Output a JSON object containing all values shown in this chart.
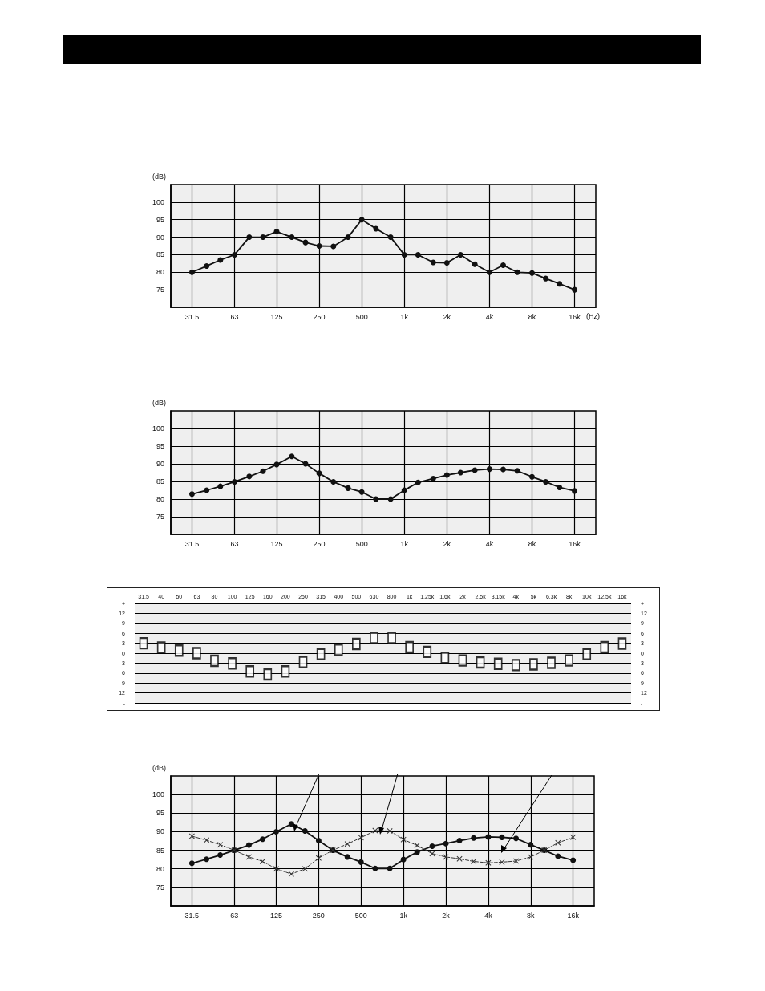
{
  "chart_data": [
    {
      "type": "line",
      "ylabel": "(dB)",
      "xlabel": "(Hz)",
      "log": "x",
      "grid": true,
      "marker": "circle",
      "line_style": "solid",
      "x": [
        31.5,
        40,
        50,
        63,
        80,
        100,
        125,
        160,
        200,
        250,
        315,
        400,
        500,
        630,
        800,
        1000,
        1250,
        1600,
        2000,
        2500,
        3150,
        4000,
        5000,
        6300,
        8000,
        10000,
        12500,
        16000
      ],
      "series": [
        {
          "color": "#111111",
          "values": [
            80,
            81.8,
            83.5,
            85,
            90,
            90,
            91.6,
            90,
            88.5,
            87.5,
            87.4,
            90,
            95,
            92.4,
            90,
            85,
            85,
            82.8,
            82.7,
            85,
            82.3,
            80,
            82,
            80,
            79.8,
            78.2,
            76.7,
            75
          ]
        }
      ],
      "xlim": [
        22.3,
        22600
      ],
      "xticks": [
        {
          "value": 31.5,
          "label": "31.5"
        },
        63,
        125,
        250,
        500,
        {
          "value": 1000,
          "label": "1k"
        },
        {
          "value": 2000,
          "label": "2k"
        },
        {
          "value": 4000,
          "label": "4k"
        },
        {
          "value": 8000,
          "label": "8k"
        },
        {
          "value": 16000,
          "label": "16k"
        }
      ],
      "ylim": [
        70,
        105
      ],
      "yticks": [
        75,
        80,
        85,
        90,
        95,
        100
      ]
    },
    {
      "type": "line",
      "ylabel": "(dB)",
      "log": "x",
      "grid": true,
      "marker": "circle",
      "line_style": "solid",
      "x": [
        31.5,
        40,
        50,
        63,
        80,
        100,
        125,
        160,
        200,
        250,
        315,
        400,
        500,
        630,
        800,
        1000,
        1250,
        1600,
        2000,
        2500,
        3150,
        4000,
        5000,
        6300,
        8000,
        10000,
        12500,
        16000
      ],
      "series": [
        {
          "color": "#111111",
          "values": [
            81.4,
            82.5,
            83.6,
            84.9,
            86.4,
            87.9,
            89.8,
            92.1,
            90,
            87.3,
            84.9,
            83.1,
            82,
            80,
            80,
            82.5,
            84.7,
            85.8,
            86.8,
            87.5,
            88.2,
            88.5,
            88.4,
            88,
            86.3,
            84.9,
            83.3,
            82.3
          ]
        }
      ],
      "xlim": [
        22.3,
        22600
      ],
      "xticks": [
        {
          "value": 31.5,
          "label": "31.5"
        },
        63,
        125,
        250,
        500,
        {
          "value": 1000,
          "label": "1k"
        },
        {
          "value": 2000,
          "label": "2k"
        },
        {
          "value": 4000,
          "label": "4k"
        },
        {
          "value": 8000,
          "label": "8k"
        },
        {
          "value": 16000,
          "label": "16k"
        }
      ],
      "ylim": [
        70,
        105
      ],
      "yticks": [
        75,
        80,
        85,
        90,
        95,
        100
      ]
    },
    {
      "type": "scatter",
      "marker": "square",
      "grid": "y",
      "categories": [
        "31.5",
        "40",
        "50",
        "63",
        "80",
        "100",
        "125",
        "160",
        "200",
        "250",
        "315",
        "400",
        "500",
        "630",
        "800",
        "1k",
        "1.25k",
        "1.6k",
        "2k",
        "2.5k",
        "3.15k",
        "4k",
        "5k",
        "6.3k",
        "8k",
        "10k",
        "12.5k",
        "16k"
      ],
      "series": [
        {
          "color": "#000000",
          "values": [
            3,
            1.7,
            0.8,
            0,
            -2.3,
            -3.1,
            -5.5,
            -6.4,
            -5.5,
            -2.7,
            -0.3,
            1,
            2.8,
            4.6,
            4.6,
            1.8,
            0.4,
            -1.4,
            -2.2,
            -2.8,
            -3.2,
            -3.6,
            -3.4,
            -2.9,
            -2.2,
            -0.3,
            1.8,
            2.9
          ]
        }
      ],
      "ylim": [
        -15,
        15
      ],
      "yticks": [
        {
          "value": 15,
          "label": "+"
        },
        12,
        9,
        6,
        3,
        0,
        {
          "value": -3,
          "label": "3"
        },
        {
          "value": -6,
          "label": "6"
        },
        {
          "value": -9,
          "label": "9"
        },
        {
          "value": -12,
          "label": "12"
        },
        {
          "value": -15,
          "label": "-"
        }
      ],
      "y2lim": [
        -15,
        15
      ],
      "y2ticks": [
        {
          "value": 15,
          "label": "+"
        },
        12,
        9,
        6,
        3,
        0,
        {
          "value": -3,
          "label": "3"
        },
        {
          "value": -6,
          "label": "6"
        },
        {
          "value": -9,
          "label": "9"
        },
        {
          "value": -12,
          "label": "12"
        },
        {
          "value": -15,
          "label": "-"
        }
      ]
    },
    {
      "type": "line",
      "ylabel": "(dB)",
      "log": "x",
      "grid": true,
      "x": [
        31.5,
        40,
        50,
        63,
        80,
        100,
        125,
        160,
        200,
        250,
        315,
        400,
        500,
        630,
        800,
        1000,
        1250,
        1600,
        2000,
        2500,
        3150,
        4000,
        5000,
        6300,
        8000,
        10000,
        12500,
        16000
      ],
      "series": [
        {
          "color": "#111111",
          "marker": "circle",
          "line_style": "solid",
          "values": [
            81.5,
            82.6,
            83.7,
            85,
            86.4,
            88,
            90,
            92.1,
            90.2,
            87.6,
            85,
            83.2,
            81.8,
            80.1,
            80.1,
            82.5,
            84.5,
            86.1,
            86.8,
            87.6,
            88.3,
            88.6,
            88.5,
            88.2,
            86.5,
            85,
            83.4,
            82.3
          ]
        },
        {
          "color": "#333333",
          "marker": "cross",
          "line_style": "dashed",
          "values": [
            88.8,
            87.7,
            86.5,
            85,
            83.2,
            82,
            80,
            78.6,
            80,
            82.9,
            85,
            86.7,
            88.4,
            90.3,
            90.2,
            87.9,
            86.3,
            84.1,
            83.2,
            82.7,
            82,
            81.6,
            81.8,
            82.1,
            83.2,
            85,
            87,
            88.5
          ]
        }
      ],
      "xlim": [
        22.3,
        22600
      ],
      "xticks": [
        {
          "value": 31.5,
          "label": "31.5"
        },
        63,
        125,
        250,
        500,
        {
          "value": 1000,
          "label": "1k"
        },
        {
          "value": 2000,
          "label": "2k"
        },
        {
          "value": 4000,
          "label": "4k"
        },
        {
          "value": 8000,
          "label": "8k"
        },
        {
          "value": 16000,
          "label": "16k"
        }
      ],
      "ylim": [
        70,
        105
      ],
      "yticks": [
        75,
        80,
        85,
        90,
        95,
        100
      ]
    }
  ]
}
